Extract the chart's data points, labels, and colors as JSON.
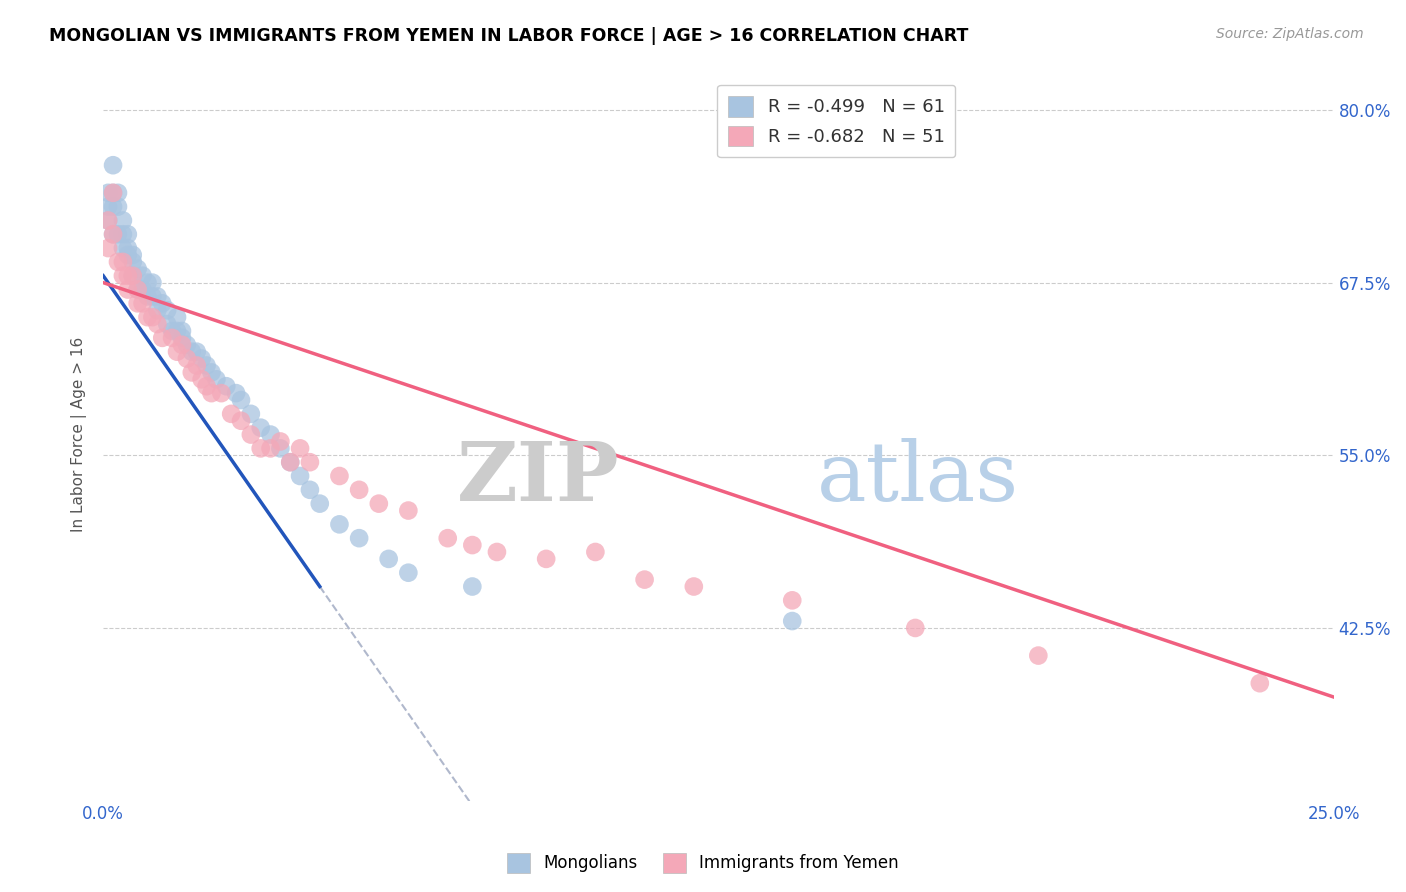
{
  "title": "MONGOLIAN VS IMMIGRANTS FROM YEMEN IN LABOR FORCE | AGE > 16 CORRELATION CHART",
  "source": "Source: ZipAtlas.com",
  "ylabel": "In Labor Force | Age > 16",
  "xlim": [
    0.0,
    0.25
  ],
  "ylim": [
    0.3,
    0.83
  ],
  "xticks": [
    0.0,
    0.05,
    0.1,
    0.15,
    0.2,
    0.25
  ],
  "yticks": [
    0.425,
    0.55,
    0.675,
    0.8
  ],
  "ytick_labels": [
    "42.5%",
    "55.0%",
    "67.5%",
    "80.0%"
  ],
  "xtick_labels_show": [
    "0.0%",
    "25.0%"
  ],
  "legend_r1": "R = -0.499",
  "legend_n1": "N = 61",
  "legend_r2": "R = -0.682",
  "legend_n2": "N = 51",
  "color_mongolian": "#a8c4e0",
  "color_yemen": "#f4a8b8",
  "color_line_mongolian": "#2255bb",
  "color_line_yemen": "#f06080",
  "color_line_dashed": "#b0b8cc",
  "watermark_zip": "ZIP",
  "watermark_atlas": "atlas",
  "mongolian_x": [
    0.001,
    0.001,
    0.001,
    0.002,
    0.002,
    0.002,
    0.002,
    0.003,
    0.003,
    0.003,
    0.004,
    0.004,
    0.004,
    0.005,
    0.005,
    0.005,
    0.006,
    0.006,
    0.006,
    0.007,
    0.007,
    0.008,
    0.008,
    0.009,
    0.009,
    0.01,
    0.01,
    0.011,
    0.011,
    0.012,
    0.013,
    0.013,
    0.014,
    0.015,
    0.015,
    0.016,
    0.016,
    0.017,
    0.018,
    0.019,
    0.02,
    0.021,
    0.022,
    0.023,
    0.025,
    0.027,
    0.028,
    0.03,
    0.032,
    0.034,
    0.036,
    0.038,
    0.04,
    0.042,
    0.044,
    0.048,
    0.052,
    0.058,
    0.062,
    0.075,
    0.14
  ],
  "mongolian_y": [
    0.74,
    0.73,
    0.72,
    0.76,
    0.74,
    0.73,
    0.71,
    0.74,
    0.73,
    0.71,
    0.72,
    0.71,
    0.7,
    0.71,
    0.7,
    0.695,
    0.695,
    0.69,
    0.68,
    0.685,
    0.67,
    0.68,
    0.67,
    0.675,
    0.665,
    0.675,
    0.665,
    0.665,
    0.655,
    0.66,
    0.655,
    0.645,
    0.64,
    0.65,
    0.64,
    0.64,
    0.635,
    0.63,
    0.625,
    0.625,
    0.62,
    0.615,
    0.61,
    0.605,
    0.6,
    0.595,
    0.59,
    0.58,
    0.57,
    0.565,
    0.555,
    0.545,
    0.535,
    0.525,
    0.515,
    0.5,
    0.49,
    0.475,
    0.465,
    0.455,
    0.43
  ],
  "yemen_x": [
    0.001,
    0.001,
    0.002,
    0.002,
    0.003,
    0.004,
    0.004,
    0.005,
    0.005,
    0.006,
    0.007,
    0.007,
    0.008,
    0.009,
    0.01,
    0.011,
    0.012,
    0.014,
    0.015,
    0.016,
    0.017,
    0.018,
    0.019,
    0.02,
    0.021,
    0.022,
    0.024,
    0.026,
    0.028,
    0.03,
    0.032,
    0.034,
    0.036,
    0.038,
    0.04,
    0.042,
    0.048,
    0.052,
    0.056,
    0.062,
    0.07,
    0.075,
    0.08,
    0.09,
    0.1,
    0.11,
    0.12,
    0.14,
    0.165,
    0.19,
    0.235
  ],
  "yemen_y": [
    0.72,
    0.7,
    0.74,
    0.71,
    0.69,
    0.69,
    0.68,
    0.68,
    0.67,
    0.68,
    0.67,
    0.66,
    0.66,
    0.65,
    0.65,
    0.645,
    0.635,
    0.635,
    0.625,
    0.63,
    0.62,
    0.61,
    0.615,
    0.605,
    0.6,
    0.595,
    0.595,
    0.58,
    0.575,
    0.565,
    0.555,
    0.555,
    0.56,
    0.545,
    0.555,
    0.545,
    0.535,
    0.525,
    0.515,
    0.51,
    0.49,
    0.485,
    0.48,
    0.475,
    0.48,
    0.46,
    0.455,
    0.445,
    0.425,
    0.405,
    0.385
  ],
  "blue_line_x0": 0.0,
  "blue_line_y0": 0.68,
  "blue_line_x1": 0.044,
  "blue_line_y1": 0.455,
  "pink_line_x0": 0.0,
  "pink_line_y0": 0.675,
  "pink_line_x1": 0.25,
  "pink_line_y1": 0.375
}
